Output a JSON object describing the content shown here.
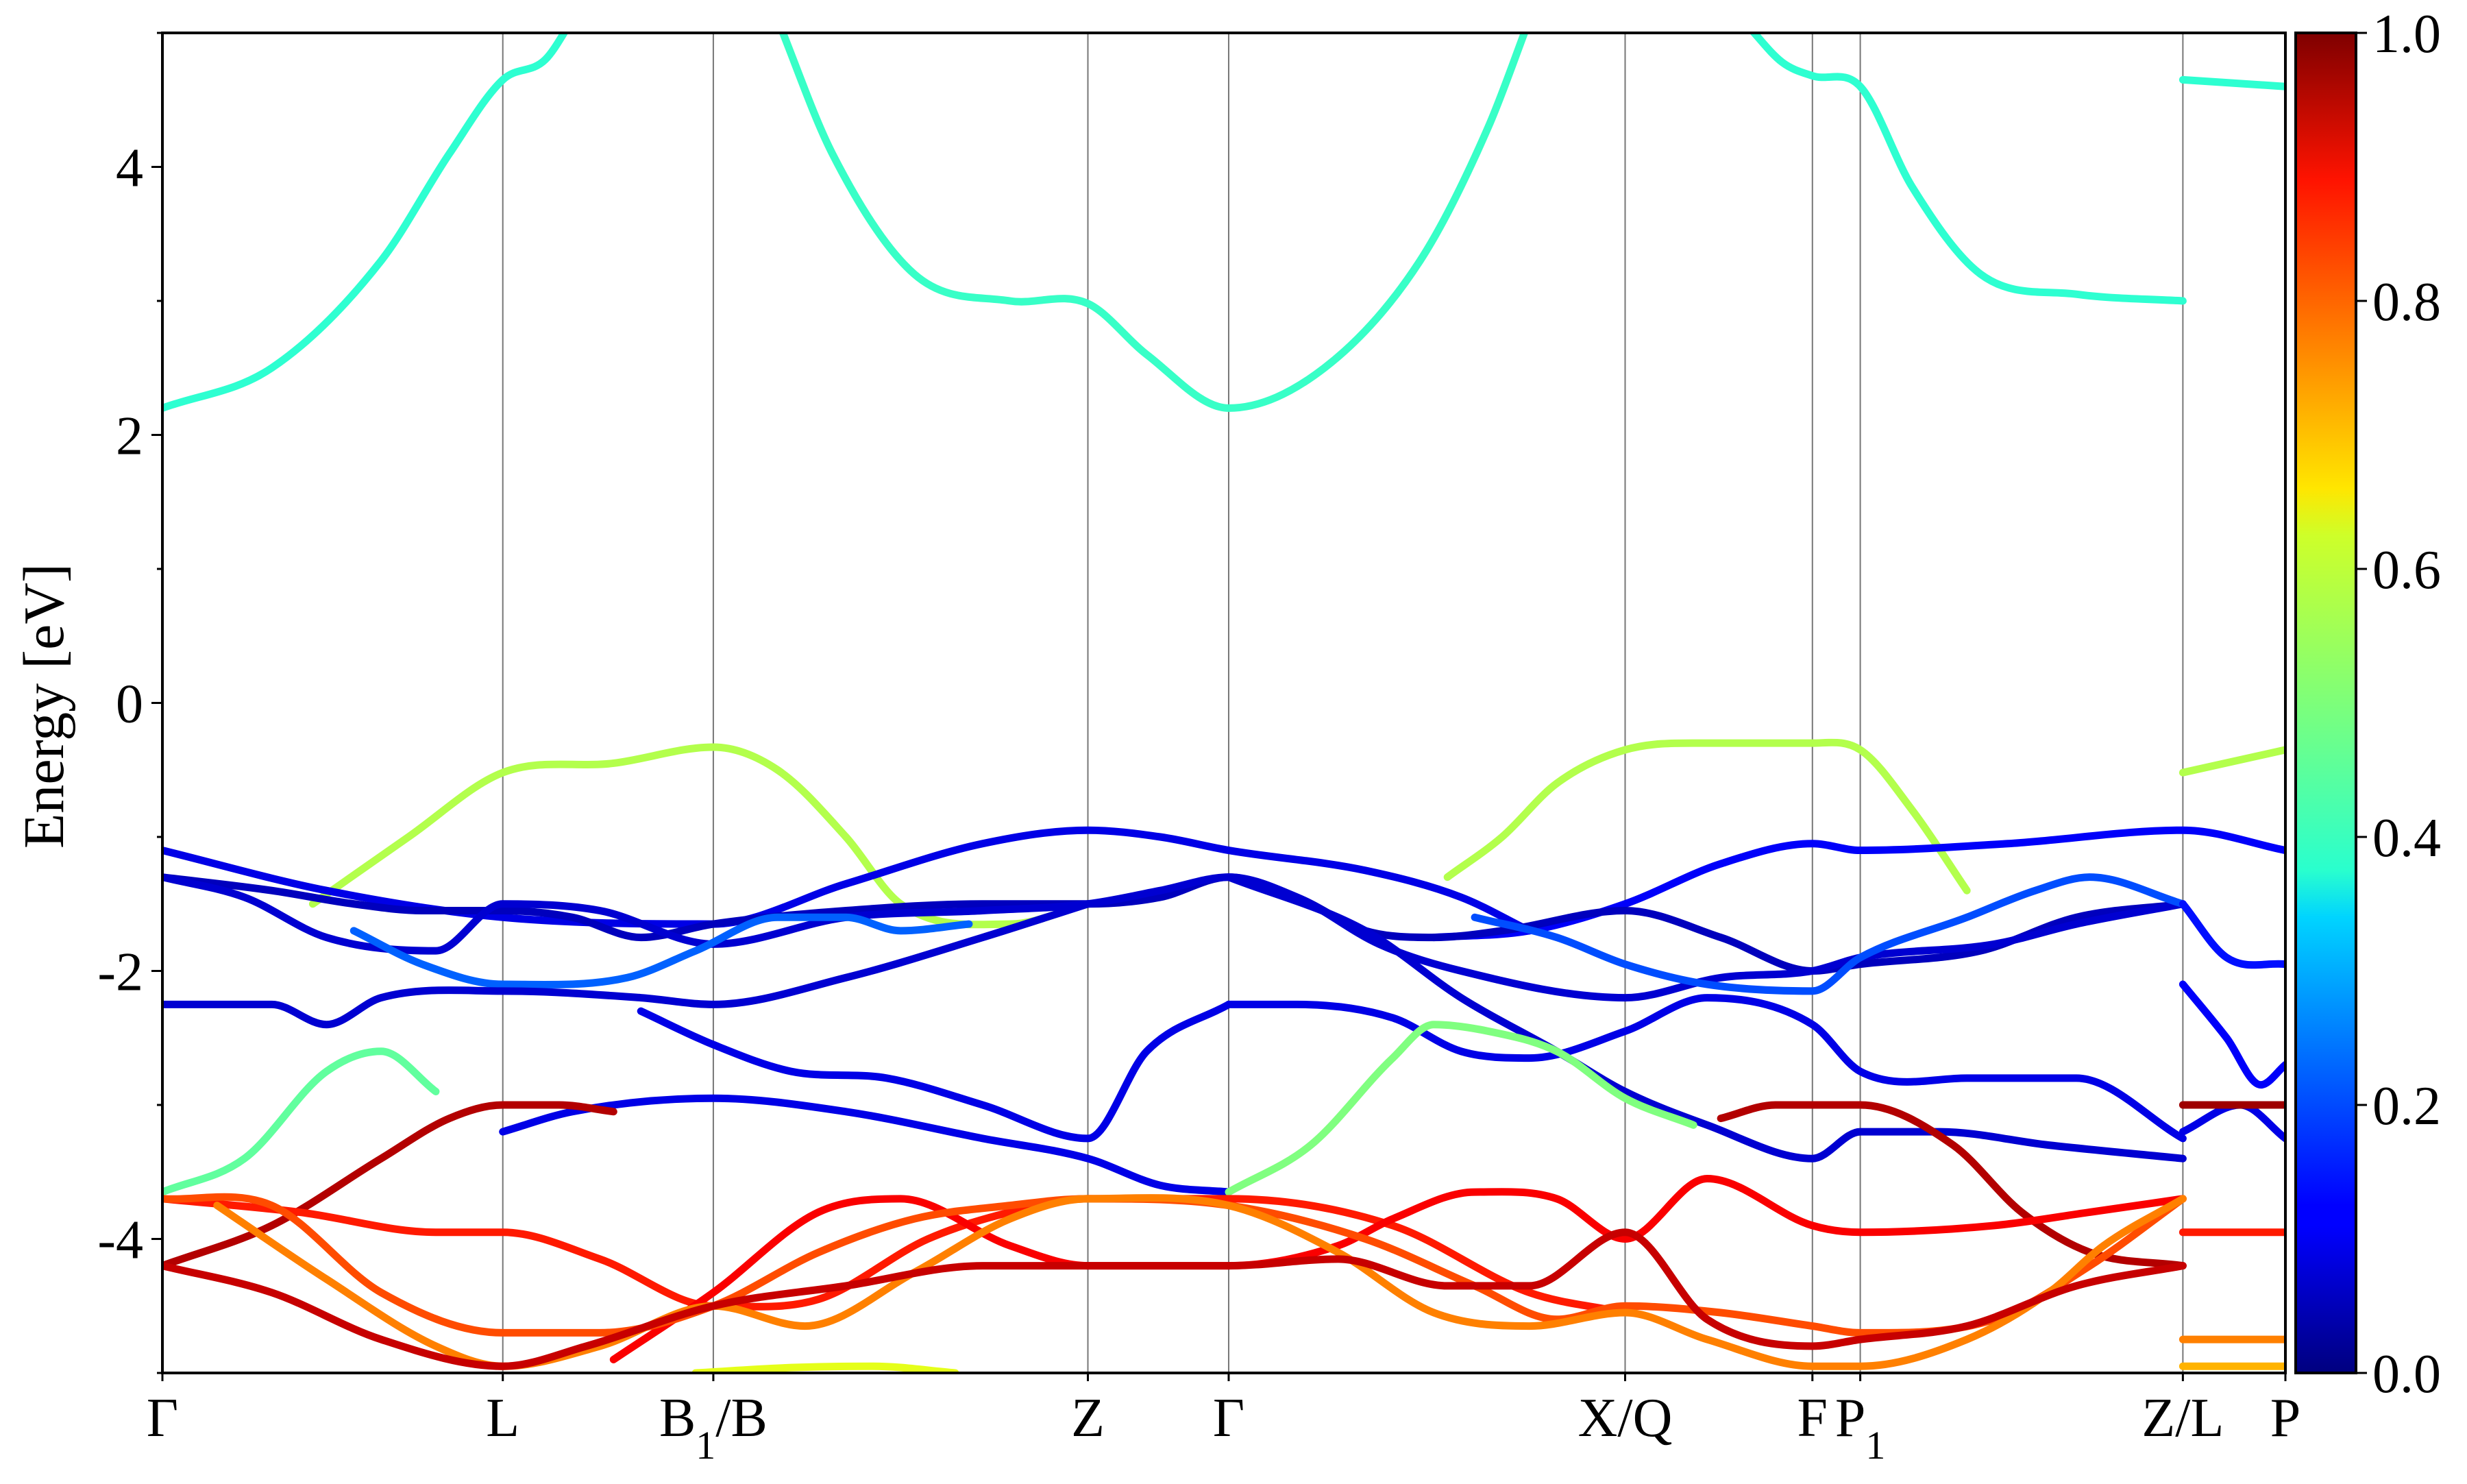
{
  "chart_data": {
    "type": "line",
    "ylabel": "Energy [eV]",
    "xlabel": "",
    "ylim": [
      -5,
      5
    ],
    "yticks": [
      -4,
      -2,
      0,
      2,
      4
    ],
    "yticklabels": [
      "-4",
      "-2",
      "0",
      "2",
      "4"
    ],
    "ytick_minor_step": 1,
    "xlim": [
      0,
      15.53
    ],
    "kpath": [
      {
        "label": "Γ",
        "sub": "",
        "label2": "",
        "x": 0
      },
      {
        "label": "L",
        "sub": "",
        "label2": "",
        "x": 2.49
      },
      {
        "label": "B",
        "sub": "1",
        "label2": "/B",
        "x": 4.03
      },
      {
        "label": "Z",
        "sub": "",
        "label2": "",
        "x": 6.77
      },
      {
        "label": "Γ",
        "sub": "",
        "label2": "",
        "x": 7.8
      },
      {
        "label": "X/Q",
        "sub": "",
        "label2": "",
        "x": 10.7
      },
      {
        "label": "F",
        "sub": "",
        "label2": "",
        "x": 12.07
      },
      {
        "label": "P",
        "sub": "1",
        "label2": "",
        "x": 12.42
      },
      {
        "label": "Z/L",
        "sub": "",
        "label2": "",
        "x": 14.78
      },
      {
        "label": "P",
        "sub": "",
        "label2": "",
        "x": 15.53
      }
    ],
    "colorbar": {
      "colormap": "jet",
      "range": [
        0.0,
        1.0
      ],
      "ticks": [
        0.0,
        0.2,
        0.4,
        0.6,
        0.8,
        1.0
      ],
      "ticklabels": [
        "0.0",
        "0.2",
        "0.4",
        "0.6",
        "0.8",
        "1.0"
      ]
    },
    "series": [
      {
        "weight": 0.42,
        "x": [
          0,
          0.8,
          1.6,
          2.1,
          2.49,
          2.8,
          3.0
        ],
        "y": [
          2.2,
          2.5,
          3.3,
          4.1,
          4.65,
          4.8,
          5.1
        ]
      },
      {
        "weight": 0.43,
        "x": [
          4.5,
          4.9,
          5.5,
          6.2,
          6.77,
          7.2,
          7.8,
          8.5,
          9.2,
          9.7,
          10.0
        ],
        "y": [
          5.1,
          4.1,
          3.2,
          3.0,
          2.98,
          2.6,
          2.2,
          2.5,
          3.3,
          4.3,
          5.1
        ]
      },
      {
        "weight": 0.42,
        "x": [
          11.6,
          11.85,
          12.07,
          12.42,
          12.8,
          13.3,
          14.0,
          14.78
        ],
        "y": [
          5.05,
          4.78,
          4.68,
          4.6,
          3.85,
          3.2,
          3.05,
          3.0
        ]
      },
      {
        "weight": 0.42,
        "x": [
          14.78,
          15.53
        ],
        "y": [
          4.65,
          4.6
        ]
      },
      {
        "weight": 0.55,
        "x": [
          1.1,
          1.8,
          2.49,
          3.3,
          4.03,
          4.5,
          5.0,
          5.4,
          6.2,
          6.77
        ],
        "y": [
          -1.5,
          -1.0,
          -0.52,
          -0.45,
          -0.33,
          -0.5,
          -1.0,
          -1.5,
          -1.65,
          -1.5
        ]
      },
      {
        "weight": 0.55,
        "x": [
          9.4,
          9.8,
          10.2,
          10.7,
          11.3,
          12.07,
          12.42,
          12.8,
          13.2
        ],
        "y": [
          -1.3,
          -1.0,
          -0.6,
          -0.35,
          -0.3,
          -0.3,
          -0.35,
          -0.8,
          -1.4
        ]
      },
      {
        "weight": 0.55,
        "x": [
          14.78,
          15.53
        ],
        "y": [
          -0.52,
          -0.35
        ]
      },
      {
        "weight": 0.1,
        "x": [
          0,
          1.2,
          2.49,
          4.03,
          5.0,
          6.0,
          6.77,
          7.3,
          7.8,
          8.8,
          9.5,
          10.0
        ],
        "y": [
          -1.1,
          -1.4,
          -1.6,
          -1.65,
          -1.35,
          -1.05,
          -0.95,
          -1.0,
          -1.1,
          -1.25,
          -1.45,
          -1.7
        ]
      },
      {
        "weight": 0.12,
        "x": [
          9.3,
          10.0,
          10.7,
          11.4,
          12.07,
          12.42,
          13.5,
          14.78,
          15.53
        ],
        "y": [
          -1.75,
          -1.7,
          -1.5,
          -1.2,
          -1.05,
          -1.1,
          -1.05,
          -0.95,
          -1.1
        ]
      },
      {
        "weight": 0.06,
        "x": [
          0,
          0.8,
          1.4,
          1.9,
          2.49,
          3.0,
          3.5,
          4.03,
          5.0,
          6.0,
          6.77,
          7.3,
          7.8,
          8.3,
          8.8,
          9.3,
          9.8,
          10.7,
          11.4,
          12.07,
          12.42,
          13.3,
          14.0,
          14.78
        ],
        "y": [
          -1.3,
          -1.4,
          -1.5,
          -1.55,
          -1.55,
          -1.6,
          -1.75,
          -1.65,
          -1.55,
          -1.5,
          -1.5,
          -1.45,
          -1.3,
          -1.45,
          -1.7,
          -1.75,
          -1.7,
          -1.55,
          -1.75,
          -2.0,
          -1.95,
          -1.85,
          -1.6,
          -1.5
        ]
      },
      {
        "weight": 0.08,
        "x": [
          0,
          0.6,
          1.2,
          2.0,
          2.49,
          3.2,
          4.03,
          5.0,
          6.0,
          6.77,
          7.3,
          7.8,
          8.3,
          8.9,
          9.5,
          10.7,
          11.4,
          12.07,
          12.42,
          13.4,
          14.0,
          14.78
        ],
        "y": [
          -1.3,
          -1.45,
          -1.75,
          -1.85,
          -1.5,
          -1.55,
          -1.8,
          -1.6,
          -1.55,
          -1.5,
          -1.4,
          -1.3,
          -1.45,
          -1.8,
          -2.0,
          -2.2,
          -2.05,
          -2.0,
          -1.9,
          -1.8,
          -1.65,
          -1.5
        ]
      },
      {
        "weight": 0.22,
        "x": [
          1.4,
          1.9,
          2.49,
          3.4,
          3.9,
          4.5,
          5.0,
          5.4,
          5.9
        ],
        "y": [
          -1.7,
          -1.95,
          -2.1,
          -2.05,
          -1.85,
          -1.6,
          -1.6,
          -1.7,
          -1.65
        ]
      },
      {
        "weight": 0.2,
        "x": [
          9.6,
          10.2,
          10.7,
          11.3,
          12.07,
          12.42,
          13.2,
          13.7,
          14.1,
          14.78
        ],
        "y": [
          -1.6,
          -1.75,
          -1.95,
          -2.1,
          -2.15,
          -1.9,
          -1.6,
          -1.4,
          -1.3,
          -1.5
        ]
      },
      {
        "weight": 0.08,
        "x": [
          0,
          0.8,
          1.2,
          1.6,
          2.49,
          3.5,
          4.03,
          5.0,
          6.0,
          6.77
        ],
        "y": [
          -2.25,
          -2.25,
          -2.4,
          -2.2,
          -2.15,
          -2.2,
          -2.25,
          -2.05,
          -1.75,
          -1.5
        ]
      },
      {
        "weight": 0.1,
        "x": [
          7.8,
          8.3,
          9.0,
          9.5,
          10.0,
          10.7,
          11.3,
          12.07,
          12.42,
          13.2,
          14.0,
          14.78
        ],
        "y": [
          -2.25,
          -2.25,
          -2.35,
          -2.6,
          -2.65,
          -2.45,
          -2.2,
          -2.4,
          -2.75,
          -2.8,
          -2.8,
          -3.25
        ]
      },
      {
        "weight": 0.1,
        "x": [
          3.5,
          4.03,
          4.6,
          5.3,
          6.0,
          6.77,
          7.2,
          7.8
        ],
        "y": [
          -2.3,
          -2.55,
          -2.75,
          -2.8,
          -3.0,
          -3.25,
          -2.6,
          -2.25
        ]
      },
      {
        "weight": 0.08,
        "x": [
          7.8,
          8.8,
          9.5,
          10.2,
          10.7,
          11.3,
          12.07,
          12.42,
          13.0,
          13.8,
          14.78
        ],
        "y": [
          -1.3,
          -1.7,
          -2.2,
          -2.6,
          -2.9,
          -3.15,
          -3.4,
          -3.2,
          -3.2,
          -3.3,
          -3.4
        ]
      },
      {
        "weight": 0.1,
        "x": [
          2.49,
          3.0,
          4.03,
          5.0,
          6.0,
          6.77,
          7.3,
          7.8
        ],
        "y": [
          -3.2,
          -3.05,
          -2.95,
          -3.05,
          -3.25,
          -3.4,
          -3.6,
          -3.65
        ]
      },
      {
        "weight": 0.47,
        "x": [
          0,
          0.6,
          1.2,
          1.6,
          2.0
        ],
        "y": [
          -3.65,
          -3.4,
          -2.75,
          -2.6,
          -2.9
        ]
      },
      {
        "weight": 0.5,
        "x": [
          7.8,
          8.4,
          9.0,
          9.3,
          9.7,
          10.2,
          10.7,
          11.2
        ],
        "y": [
          -3.65,
          -3.3,
          -2.65,
          -2.4,
          -2.45,
          -2.6,
          -2.95,
          -3.15
        ]
      },
      {
        "weight": 0.12,
        "x": [
          14.78,
          15.1,
          15.35,
          15.53
        ],
        "y": [
          -2.1,
          -2.5,
          -2.85,
          -2.7
        ]
      },
      {
        "weight": 0.14,
        "x": [
          14.78,
          15.1,
          15.53
        ],
        "y": [
          -1.5,
          -1.9,
          -1.95
        ]
      },
      {
        "weight": 0.1,
        "x": [
          14.78,
          15.2,
          15.53
        ],
        "y": [
          -3.2,
          -3.0,
          -3.25
        ]
      },
      {
        "weight": 0.95,
        "x": [
          0,
          0.8,
          1.6,
          2.1,
          2.49,
          2.9,
          3.3
        ],
        "y": [
          -4.2,
          -3.9,
          -3.4,
          -3.1,
          -3.0,
          -3.0,
          -3.05
        ]
      },
      {
        "weight": 0.95,
        "x": [
          11.4,
          11.8,
          12.07,
          12.42,
          13.1,
          13.6,
          14.1,
          14.78
        ],
        "y": [
          -3.1,
          -3.0,
          -3.0,
          -3.0,
          -3.3,
          -3.8,
          -4.1,
          -4.2
        ]
      },
      {
        "weight": 0.97,
        "x": [
          14.78,
          15.53
        ],
        "y": [
          -3.0,
          -3.0
        ]
      },
      {
        "weight": 0.85,
        "x": [
          0,
          1.0,
          2.0,
          2.49,
          3.2,
          4.03,
          4.8,
          5.6,
          6.2,
          6.77,
          7.8,
          9.0,
          10.0,
          10.7
        ],
        "y": [
          -3.7,
          -3.8,
          -3.95,
          -3.95,
          -4.15,
          -4.5,
          -4.45,
          -4.0,
          -3.8,
          -3.7,
          -3.7,
          -3.9,
          -4.4,
          -4.55
        ]
      },
      {
        "weight": 0.88,
        "x": [
          3.3,
          4.03,
          4.8,
          5.4,
          6.2,
          6.77,
          7.8,
          8.6,
          9.0,
          9.6,
          10.2,
          10.7,
          11.3,
          12.07,
          12.42,
          13.4,
          14.1,
          14.78
        ],
        "y": [
          -4.9,
          -4.4,
          -3.8,
          -3.7,
          -4.05,
          -4.2,
          -4.2,
          -4.05,
          -3.85,
          -3.65,
          -3.7,
          -4.0,
          -3.55,
          -3.9,
          -3.95,
          -3.9,
          -3.8,
          -3.7
        ]
      },
      {
        "weight": 0.8,
        "x": [
          0,
          0.8,
          1.6,
          2.49,
          3.2,
          4.03,
          4.8,
          5.5,
          6.2,
          6.77,
          7.8,
          8.8,
          9.6,
          10.2,
          10.7,
          11.4,
          12.07,
          12.42,
          13.4,
          14.1,
          14.78
        ],
        "y": [
          -3.7,
          -3.75,
          -4.4,
          -4.7,
          -4.7,
          -4.5,
          -4.1,
          -3.85,
          -3.75,
          -3.7,
          -3.75,
          -4.0,
          -4.35,
          -4.6,
          -4.5,
          -4.55,
          -4.65,
          -4.7,
          -4.6,
          -4.2,
          -3.7
        ]
      },
      {
        "weight": 0.75,
        "x": [
          0.4,
          1.2,
          2.0,
          2.49,
          3.2,
          4.03,
          4.7,
          5.5,
          6.2,
          6.77,
          7.8,
          8.6,
          9.3,
          10.0,
          10.7,
          11.3,
          12.07,
          12.42,
          13.2,
          13.8,
          14.2,
          14.78
        ],
        "y": [
          -3.75,
          -4.3,
          -4.8,
          -4.95,
          -4.8,
          -4.5,
          -4.65,
          -4.25,
          -3.85,
          -3.7,
          -3.75,
          -4.1,
          -4.55,
          -4.65,
          -4.55,
          -4.75,
          -4.95,
          -4.95,
          -4.75,
          -4.4,
          -4.05,
          -3.7
        ]
      },
      {
        "weight": 0.93,
        "x": [
          0,
          0.8,
          1.6,
          2.49,
          3.1,
          4.03,
          5.0,
          6.0,
          6.77,
          7.8,
          8.6,
          9.4,
          10.0,
          10.7,
          11.3,
          12.07,
          12.42,
          13.2,
          14.0,
          14.78
        ],
        "y": [
          -4.2,
          -4.4,
          -4.75,
          -4.95,
          -4.8,
          -4.5,
          -4.35,
          -4.2,
          -4.2,
          -4.2,
          -4.15,
          -4.35,
          -4.35,
          -3.95,
          -4.6,
          -4.8,
          -4.75,
          -4.65,
          -4.35,
          -4.2
        ]
      },
      {
        "weight": 0.85,
        "x": [
          14.78,
          15.53
        ],
        "y": [
          -3.95,
          -3.95
        ]
      },
      {
        "weight": 0.75,
        "x": [
          14.78,
          15.53
        ],
        "y": [
          -4.75,
          -4.75
        ]
      },
      {
        "weight": 0.7,
        "x": [
          14.78,
          15.53
        ],
        "y": [
          -4.95,
          -4.95
        ]
      },
      {
        "weight": 0.6,
        "x": [
          3.9,
          4.6,
          5.2,
          5.8
        ],
        "y": [
          -5.0,
          -4.96,
          -4.95,
          -5.0
        ]
      }
    ]
  }
}
